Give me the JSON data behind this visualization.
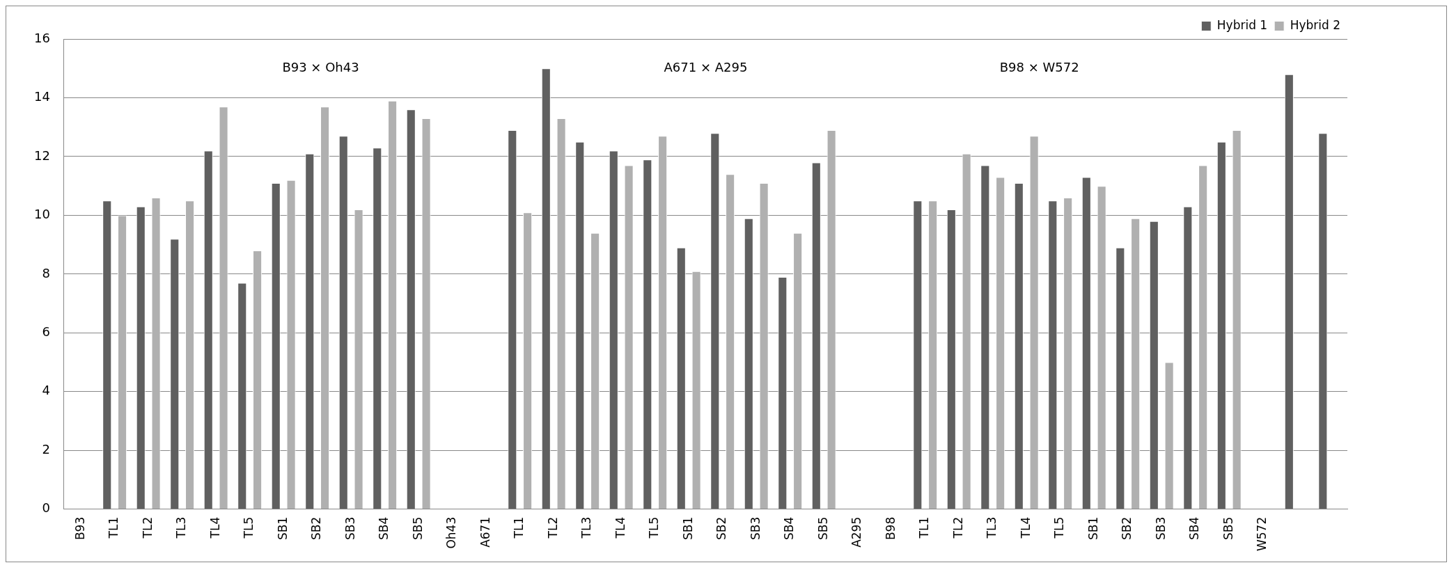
{
  "chart_data": {
    "type": "bar",
    "categories": [
      "B93",
      "TL1",
      "TL2",
      "TL3",
      "TL4",
      "TL5",
      "SB1",
      "SB2",
      "SB3",
      "SB4",
      "SB5",
      "Oh43",
      "A671",
      "TL1",
      "TL2",
      "TL3",
      "TL4",
      "TL5",
      "SB1",
      "SB2",
      "SB3",
      "SB4",
      "SB5",
      "A295",
      "B98",
      "TL1",
      "TL2",
      "TL3",
      "TL4",
      "TL5",
      "SB1",
      "SB2",
      "SB3",
      "SB4",
      "SB5",
      "W572",
      null,
      null
    ],
    "series": [
      {
        "name": "Hybrid 1",
        "color": "#606060",
        "values": [
          null,
          10.5,
          10.3,
          9.2,
          12.2,
          7.7,
          11.1,
          12.1,
          12.7,
          12.3,
          13.6,
          null,
          null,
          12.9,
          15.0,
          12.5,
          12.2,
          11.9,
          8.9,
          12.8,
          9.9,
          7.9,
          11.8,
          null,
          null,
          10.5,
          10.2,
          11.7,
          11.1,
          10.5,
          11.3,
          8.9,
          9.8,
          10.3,
          12.5,
          null,
          14.8,
          12.8
        ]
      },
      {
        "name": "Hybrid 2",
        "color": "#b0b0b0",
        "values": [
          null,
          10.0,
          10.6,
          10.5,
          13.7,
          8.8,
          11.2,
          13.7,
          10.2,
          13.9,
          13.3,
          null,
          null,
          10.1,
          13.3,
          9.4,
          11.7,
          12.7,
          8.1,
          11.4,
          11.1,
          9.4,
          12.9,
          null,
          null,
          10.5,
          12.1,
          11.3,
          12.7,
          10.6,
          11.0,
          9.9,
          5.0,
          11.7,
          12.9,
          null,
          null,
          null
        ]
      }
    ],
    "ylim": [
      0,
      16
    ],
    "yticks": [
      0,
      2,
      4,
      6,
      8,
      10,
      12,
      14,
      16
    ],
    "grid": "y",
    "legend": "top right",
    "annotations": [
      "B93 × Oh43",
      "A671 × A295",
      "B98 × W572"
    ]
  }
}
